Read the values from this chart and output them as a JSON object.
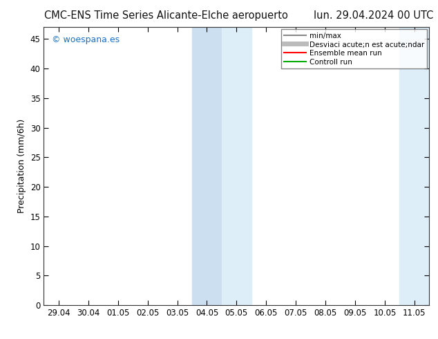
{
  "title_left": "CMC-ENS Time Series Alicante-Elche aeropuerto",
  "title_right": "lun. 29.04.2024 00 UTC",
  "ylabel": "Precipitation (mm/6h)",
  "xlim_dates": [
    "29.04",
    "30.04",
    "01.05",
    "02.05",
    "03.05",
    "04.05",
    "05.05",
    "06.05",
    "07.05",
    "08.05",
    "09.05",
    "10.05",
    "11.05"
  ],
  "ylim": [
    0,
    47
  ],
  "yticks": [
    0,
    5,
    10,
    15,
    20,
    25,
    30,
    35,
    40,
    45
  ],
  "background_color": "#ffffff",
  "plot_bg_color": "#ffffff",
  "shaded_dark_color": "#ccdff0",
  "shaded_light_color": "#ddeef8",
  "shaded_right_color": "#ddeef8",
  "shaded_x1": "04.05",
  "shaded_x2": "05.05",
  "shaded_x3": "06.05",
  "legend_entries": [
    "min/max",
    "Desviaci acute;n est acute;ndar",
    "Ensemble mean run",
    "Controll run"
  ],
  "legend_line_colors": [
    "#888888",
    "#bbbbbb",
    "#ff0000",
    "#00aa00"
  ],
  "watermark_text": "© woespana.es",
  "watermark_color": "#1a6fc4",
  "title_fontsize": 10.5,
  "axis_label_fontsize": 9,
  "tick_fontsize": 8.5,
  "legend_fontsize": 7.5
}
